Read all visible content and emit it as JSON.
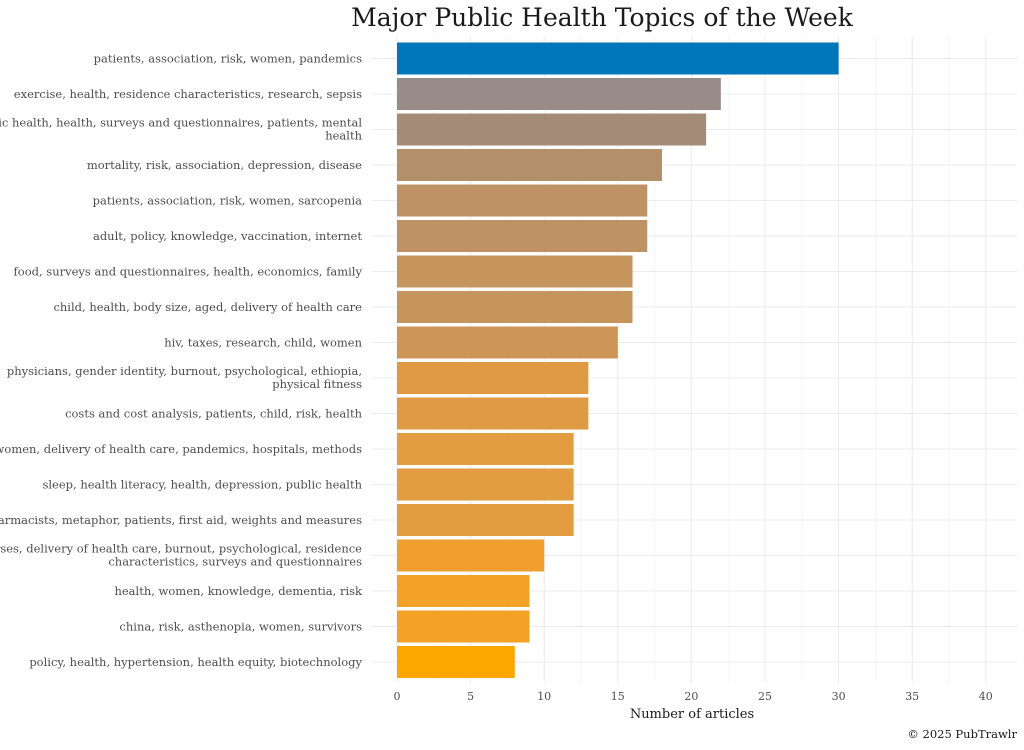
{
  "chart_data": {
    "type": "bar",
    "orientation": "horizontal",
    "title": "Major Public Health Topics of the Week",
    "xlabel": "Number of articles",
    "ylabel": "",
    "caption": "© 2025 PubTrawlr",
    "xlim": [
      0,
      42
    ],
    "x_ticks": [
      0,
      5,
      10,
      15,
      20,
      25,
      30,
      35,
      40
    ],
    "grid": true,
    "highlight_color": "#0077BB",
    "bar_colors": [
      "#0077BB",
      "#998B87",
      "#A48B78",
      "#B38F6A",
      "#BE9264",
      "#BE9264",
      "#C6955E",
      "#C6955E",
      "#CE9656",
      "#E09A44",
      "#E09A44",
      "#E29C42",
      "#E29C42",
      "#E29C42",
      "#F09E2E",
      "#F4A226",
      "#F4A226",
      "#FCA602"
    ],
    "categories": [
      [
        "patients, association, risk, women, pandemics"
      ],
      [
        "exercise, health, residence characteristics, research, sepsis"
      ],
      [
        "public health, health, surveys and questionnaires, patients, mental",
        "health"
      ],
      [
        "mortality, risk, association, depression, disease"
      ],
      [
        "patients, association, risk, women, sarcopenia"
      ],
      [
        "adult, policy, knowledge, vaccination, internet"
      ],
      [
        "food, surveys and questionnaires, health, economics, family"
      ],
      [
        "child, health, body size, aged, delivery of health care"
      ],
      [
        "hiv, taxes, research, child, women"
      ],
      [
        "physicians, gender identity, burnout, psychological, ethiopia,",
        "physical fitness"
      ],
      [
        "costs and cost analysis, patients, child, risk, health"
      ],
      [
        "women, delivery of health care, pandemics, hospitals, methods"
      ],
      [
        "sleep, health literacy, health, depression, public health"
      ],
      [
        "pharmacists, metaphor, patients, first aid, weights and measures"
      ],
      [
        "nurses, delivery of health care, burnout, psychological, residence",
        "characteristics, surveys and questionnaires"
      ],
      [
        "health, women, knowledge, dementia, risk"
      ],
      [
        "china, risk, asthenopia, women, survivors"
      ],
      [
        "policy, health, hypertension, health equity, biotechnology"
      ]
    ],
    "values": [
      30,
      22,
      21,
      18,
      17,
      17,
      16,
      16,
      15,
      13,
      13,
      12,
      12,
      12,
      10,
      9,
      9,
      8
    ]
  }
}
